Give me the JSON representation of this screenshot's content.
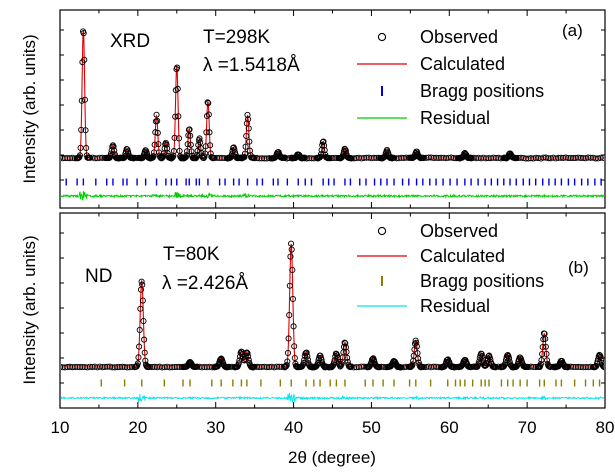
{
  "chart_data": [
    {
      "type": "line",
      "panel_label": "(a)",
      "ylabel": "Intensity (arb. units)",
      "annotations": [
        "XRD",
        "T=298K",
        "λ =1.5418Å"
      ],
      "xlim": [
        10,
        80
      ],
      "legend_position": "top-right",
      "legend": [
        {
          "label": "Observed",
          "marker": "open-circle",
          "color": "#000000"
        },
        {
          "label": "Calculated",
          "marker": "line",
          "color": "#e00000"
        },
        {
          "label": "Bragg positions",
          "marker": "tick",
          "color": "#0000e0"
        },
        {
          "label": "Residual",
          "marker": "line",
          "color": "#00cc00"
        }
      ],
      "background": 0.07,
      "peaks": [
        {
          "x": 13.0,
          "y": 1.0
        },
        {
          "x": 16.8,
          "y": 0.1
        },
        {
          "x": 18.6,
          "y": 0.07
        },
        {
          "x": 21.0,
          "y": 0.06
        },
        {
          "x": 22.4,
          "y": 0.33
        },
        {
          "x": 23.6,
          "y": 0.12
        },
        {
          "x": 25.0,
          "y": 0.72
        },
        {
          "x": 26.6,
          "y": 0.23
        },
        {
          "x": 27.9,
          "y": 0.15
        },
        {
          "x": 29.0,
          "y": 0.44
        },
        {
          "x": 32.3,
          "y": 0.08
        },
        {
          "x": 34.1,
          "y": 0.33
        },
        {
          "x": 38.0,
          "y": 0.05
        },
        {
          "x": 40.6,
          "y": 0.03
        },
        {
          "x": 43.8,
          "y": 0.13
        },
        {
          "x": 46.6,
          "y": 0.07
        },
        {
          "x": 52.0,
          "y": 0.06
        },
        {
          "x": 55.8,
          "y": 0.05
        },
        {
          "x": 62.0,
          "y": 0.04
        },
        {
          "x": 67.8,
          "y": 0.04
        }
      ],
      "bragg_positions": [
        10.8,
        12.2,
        13.0,
        14.6,
        16.0,
        16.8,
        18.1,
        18.6,
        19.9,
        21.0,
        22.4,
        23.6,
        24.3,
        25.0,
        26.2,
        26.6,
        27.5,
        27.9,
        29.0,
        30.5,
        31.2,
        32.3,
        33.0,
        34.1,
        35.3,
        36.0,
        37.4,
        38.0,
        39.2,
        40.6,
        41.5,
        42.3,
        43.8,
        44.5,
        45.2,
        46.6,
        47.3,
        48.5,
        49.3,
        50.4,
        51.2,
        52.0,
        52.9,
        54.0,
        54.8,
        55.8,
        56.6,
        57.5,
        58.3,
        59.2,
        60.1,
        61.0,
        62.0,
        62.8,
        63.7,
        64.6,
        65.4,
        66.2,
        67.0,
        67.8,
        68.6,
        69.5,
        70.3,
        71.1,
        72.0,
        72.8,
        73.6,
        74.4,
        75.3,
        76.1,
        77.0,
        77.8,
        78.7,
        79.5
      ]
    },
    {
      "type": "line",
      "panel_label": "(b)",
      "ylabel": "Intensity (arb. units)",
      "xlabel": "2θ (degree)",
      "annotations": [
        "ND",
        "T=80K",
        "λ =2.426Å"
      ],
      "xlim": [
        10,
        80
      ],
      "xticks": [
        10,
        20,
        30,
        40,
        50,
        60,
        70,
        80
      ],
      "legend_position": "top-right",
      "legend": [
        {
          "label": "Observed",
          "marker": "open-circle",
          "color": "#000000"
        },
        {
          "label": "Calculated",
          "marker": "line",
          "color": "#e00000"
        },
        {
          "label": "Bragg positions",
          "marker": "tick",
          "color": "#8b7d00"
        },
        {
          "label": "Residual",
          "marker": "line",
          "color": "#00e5ee"
        }
      ],
      "background": 0.07,
      "peaks": [
        {
          "x": 20.5,
          "y": 0.7
        },
        {
          "x": 26.7,
          "y": 0.04
        },
        {
          "x": 30.7,
          "y": 0.07
        },
        {
          "x": 33.3,
          "y": 0.13
        },
        {
          "x": 34.0,
          "y": 0.12
        },
        {
          "x": 39.7,
          "y": 1.0
        },
        {
          "x": 41.6,
          "y": 0.12
        },
        {
          "x": 43.4,
          "y": 0.09
        },
        {
          "x": 45.5,
          "y": 0.11
        },
        {
          "x": 46.6,
          "y": 0.2
        },
        {
          "x": 50.2,
          "y": 0.07
        },
        {
          "x": 52.9,
          "y": 0.05
        },
        {
          "x": 55.7,
          "y": 0.21
        },
        {
          "x": 59.8,
          "y": 0.06
        },
        {
          "x": 62.0,
          "y": 0.06
        },
        {
          "x": 64.1,
          "y": 0.11
        },
        {
          "x": 65.1,
          "y": 0.09
        },
        {
          "x": 67.5,
          "y": 0.1
        },
        {
          "x": 69.1,
          "y": 0.08
        },
        {
          "x": 72.2,
          "y": 0.27
        },
        {
          "x": 74.4,
          "y": 0.05
        },
        {
          "x": 79.3,
          "y": 0.1
        }
      ],
      "bragg_positions": [
        15.3,
        18.3,
        20.5,
        23.4,
        25.8,
        26.7,
        29.5,
        30.7,
        32.2,
        33.3,
        34.0,
        35.8,
        38.3,
        39.7,
        41.6,
        42.6,
        43.4,
        44.7,
        45.5,
        46.6,
        49.2,
        50.2,
        51.5,
        52.9,
        54.9,
        55.7,
        57.6,
        59.8,
        60.8,
        61.4,
        62.0,
        63.0,
        64.1,
        64.6,
        65.1,
        66.7,
        67.5,
        68.2,
        69.1,
        70.0,
        71.6,
        72.2,
        73.7,
        74.4,
        76.1,
        77.5,
        78.5,
        79.3
      ]
    }
  ]
}
